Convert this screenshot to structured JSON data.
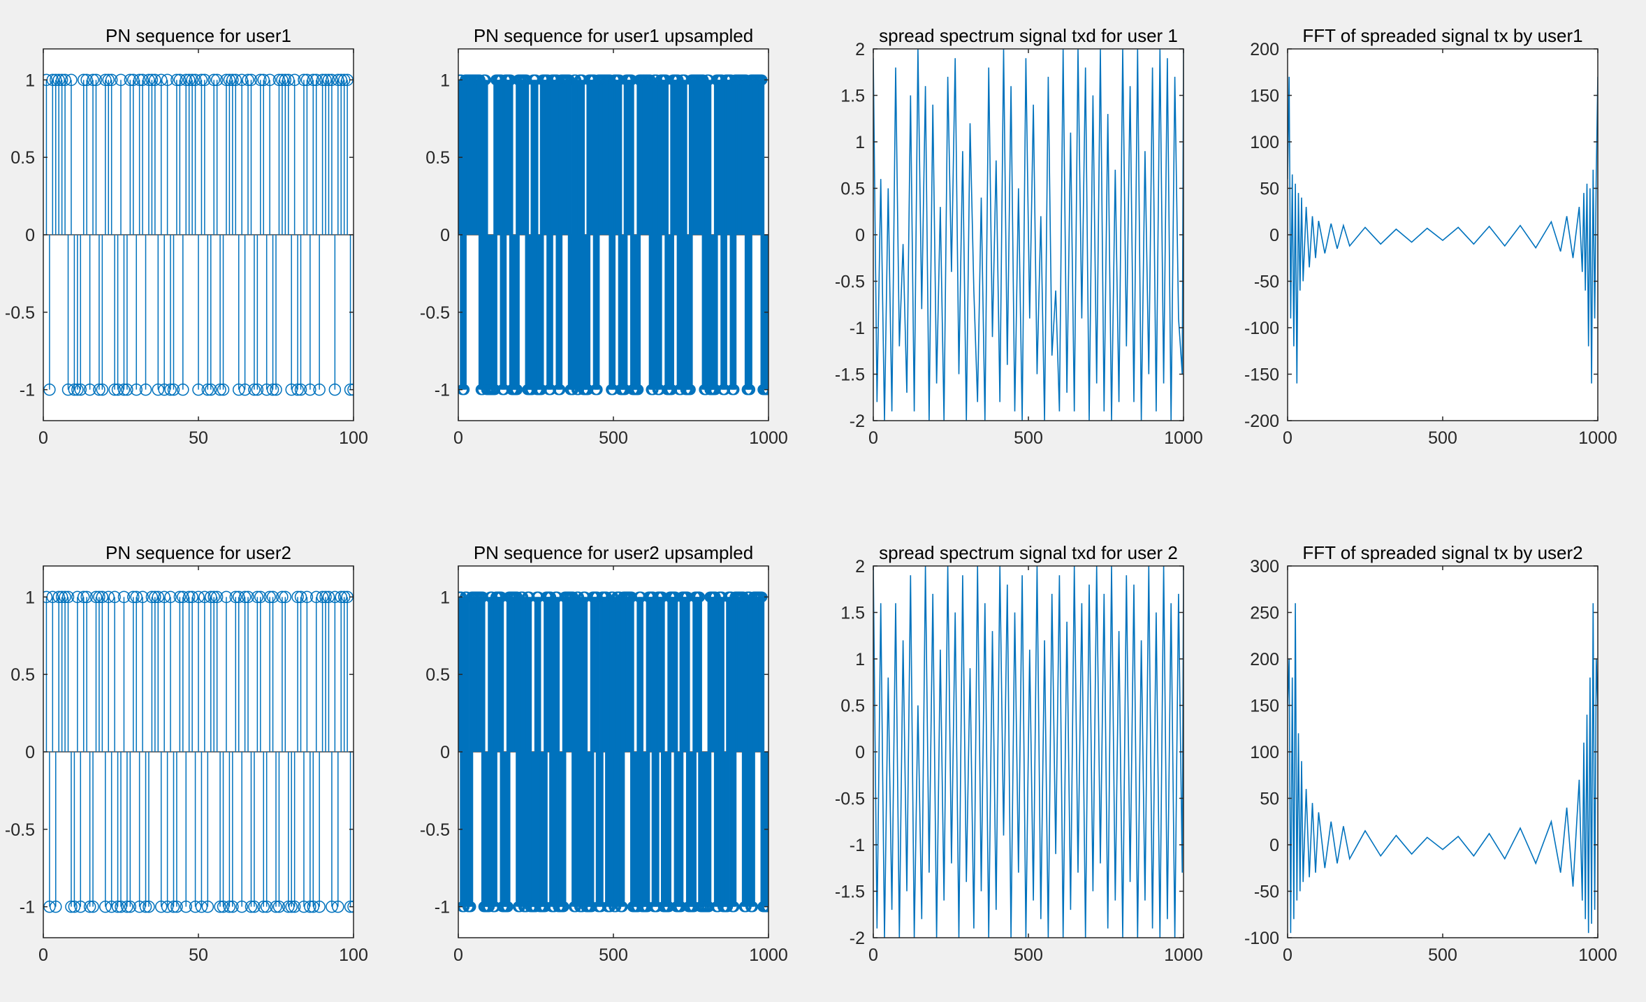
{
  "figure": {
    "background": "#f0f0f0",
    "line_color": "#0072bd"
  },
  "chart_data": [
    {
      "type": "stem",
      "title": "PN sequence for user1",
      "xlabel": "",
      "ylabel": "",
      "xlim": [
        0,
        100
      ],
      "ylim": [
        -1.2,
        1.2
      ],
      "xticks": [
        0,
        50,
        100
      ],
      "xtick_labels": [
        "0",
        "50",
        "100"
      ],
      "yticks": [
        -1,
        -0.5,
        0,
        0.5,
        1
      ],
      "ytick_labels": [
        "-1",
        "-0.5",
        "0",
        "0.5",
        "1"
      ],
      "x": [
        1,
        2,
        3,
        4,
        5,
        6,
        7,
        8,
        9,
        10,
        11,
        12,
        13,
        14,
        15,
        16,
        17,
        18,
        19,
        20,
        21,
        22,
        23,
        24,
        25,
        26,
        27,
        28,
        29,
        30,
        31,
        32,
        33,
        34,
        35,
        36,
        37,
        38,
        39,
        40,
        41,
        42,
        43,
        44,
        45,
        46,
        47,
        48,
        49,
        50,
        51,
        52,
        53,
        54,
        55,
        56,
        57,
        58,
        59,
        60,
        61,
        62,
        63,
        64,
        65,
        66,
        67,
        68,
        69,
        70,
        71,
        72,
        73,
        74,
        75,
        76,
        77,
        78,
        79,
        80,
        81,
        82,
        83,
        84,
        85,
        86,
        87,
        88,
        89,
        90,
        91,
        92,
        93,
        94,
        95,
        96,
        97,
        98,
        99,
        100
      ],
      "values": [
        1,
        -1,
        1,
        1,
        1,
        1,
        1,
        -1,
        1,
        -1,
        -1,
        -1,
        1,
        1,
        -1,
        1,
        1,
        -1,
        -1,
        1,
        1,
        1,
        -1,
        -1,
        1,
        -1,
        -1,
        1,
        1,
        -1,
        1,
        1,
        -1,
        1,
        1,
        1,
        -1,
        1,
        -1,
        1,
        -1,
        -1,
        1,
        1,
        -1,
        1,
        1,
        1,
        1,
        -1,
        1,
        1,
        -1,
        -1,
        1,
        1,
        -1,
        -1,
        1,
        1,
        1,
        1,
        -1,
        1,
        -1,
        1,
        1,
        -1,
        -1,
        1,
        1,
        -1,
        1,
        -1,
        -1,
        1,
        1,
        1,
        1,
        -1,
        1,
        -1,
        -1,
        1,
        1,
        -1,
        1,
        1,
        -1,
        1,
        1,
        1,
        1,
        -1,
        1,
        1,
        1,
        1,
        -1,
        -1
      ]
    },
    {
      "type": "stem",
      "title": "PN sequence for user1 upsampled",
      "xlabel": "",
      "ylabel": "",
      "xlim": [
        0,
        1000
      ],
      "ylim": [
        -1.2,
        1.2
      ],
      "xticks": [
        0,
        500,
        1000
      ],
      "xtick_labels": [
        "0",
        "500",
        "1000"
      ],
      "yticks": [
        -1,
        -0.5,
        0,
        0.5,
        1
      ],
      "ytick_labels": [
        "-1",
        "-0.5",
        "0",
        "0.5",
        "1"
      ],
      "source_sequence": "user1",
      "upsample_factor": 10
    },
    {
      "type": "line",
      "title": "spread spectrum signal txd for user 1",
      "xlabel": "",
      "ylabel": "",
      "xlim": [
        0,
        1000
      ],
      "ylim": [
        -2,
        2
      ],
      "xticks": [
        0,
        500,
        1000
      ],
      "xtick_labels": [
        "0",
        "500",
        "1000"
      ],
      "yticks": [
        -2,
        -1.5,
        -1,
        -0.5,
        0,
        0.5,
        1,
        1.5,
        2
      ],
      "ytick_labels": [
        "-2",
        "-1.5",
        "-1",
        "-0.5",
        "0",
        "0.5",
        "1",
        "1.5",
        "2"
      ],
      "x": [
        0,
        12,
        24,
        36,
        48,
        60,
        72,
        84,
        96,
        108,
        120,
        132,
        144,
        156,
        168,
        180,
        192,
        204,
        216,
        228,
        240,
        252,
        264,
        276,
        288,
        300,
        312,
        324,
        336,
        348,
        360,
        372,
        384,
        396,
        408,
        420,
        432,
        444,
        456,
        468,
        480,
        492,
        504,
        516,
        528,
        540,
        552,
        564,
        576,
        588,
        600,
        612,
        624,
        636,
        648,
        660,
        672,
        684,
        696,
        708,
        720,
        732,
        744,
        756,
        768,
        780,
        792,
        804,
        816,
        828,
        840,
        852,
        864,
        876,
        888,
        900,
        912,
        924,
        936,
        948,
        960,
        972,
        984,
        996,
        1000
      ],
      "values": [
        1.9,
        -1.8,
        0.6,
        -2,
        0.5,
        -1.9,
        1.8,
        -1.2,
        -0.1,
        -1.7,
        1.5,
        -1.9,
        2,
        -0.8,
        1.6,
        -2,
        1.4,
        -1.6,
        0.3,
        -2,
        1.7,
        -0.4,
        1.9,
        -1.5,
        0.9,
        -2,
        1.2,
        -0.6,
        -1.8,
        0.4,
        -2,
        1.8,
        -1.1,
        0.8,
        -1.8,
        2,
        -1.4,
        1.6,
        -1.9,
        0.5,
        -2,
        1.9,
        -0.9,
        1.4,
        -1.5,
        0.2,
        -2,
        1.7,
        -1.3,
        -0.6,
        -1.9,
        2,
        -1.7,
        1.1,
        -1.9,
        2,
        -0.9,
        1.8,
        -2,
        1.5,
        -1.6,
        2,
        -1.9,
        1.3,
        -2,
        0.7,
        -1.8,
        2,
        -1.2,
        1.6,
        -1.8,
        2,
        -2,
        0.9,
        -1.5,
        1.8,
        -1.9,
        2,
        -1.6,
        1.9,
        -2,
        1.7,
        -0.9,
        -1.5,
        2
      ]
    },
    {
      "type": "line",
      "title": "FFT of spreaded signal tx by user1",
      "xlabel": "",
      "ylabel": "",
      "xlim": [
        0,
        1000
      ],
      "ylim": [
        -200,
        200
      ],
      "xticks": [
        0,
        500,
        1000
      ],
      "xtick_labels": [
        "0",
        "500",
        "1000"
      ],
      "yticks": [
        -200,
        -150,
        -100,
        -50,
        0,
        50,
        100,
        150,
        200
      ],
      "ytick_labels": [
        "-200",
        "-150",
        "-100",
        "-50",
        "0",
        "50",
        "100",
        "150",
        "200"
      ],
      "x": [
        0,
        5,
        10,
        15,
        20,
        25,
        30,
        35,
        40,
        45,
        50,
        60,
        70,
        80,
        90,
        100,
        120,
        140,
        160,
        180,
        200,
        250,
        300,
        350,
        400,
        450,
        500,
        550,
        600,
        650,
        700,
        750,
        800,
        850,
        880,
        900,
        920,
        940,
        950,
        955,
        960,
        965,
        970,
        975,
        980,
        985,
        990,
        995,
        1000
      ],
      "values": [
        60,
        170,
        -90,
        65,
        -120,
        55,
        -160,
        45,
        -60,
        40,
        -50,
        30,
        -35,
        20,
        -25,
        15,
        -20,
        12,
        -15,
        10,
        -12,
        8,
        -10,
        6,
        -8,
        7,
        -6,
        8,
        -10,
        9,
        -12,
        10,
        -14,
        14,
        -18,
        20,
        -25,
        30,
        -40,
        45,
        -60,
        55,
        -120,
        50,
        -160,
        70,
        -90,
        65,
        170
      ]
    },
    {
      "type": "stem",
      "title": "PN sequence for user2",
      "xlabel": "",
      "ylabel": "",
      "xlim": [
        0,
        100
      ],
      "ylim": [
        -1.2,
        1.2
      ],
      "xticks": [
        0,
        50,
        100
      ],
      "xtick_labels": [
        "0",
        "50",
        "100"
      ],
      "yticks": [
        -1,
        -0.5,
        0,
        0.5,
        1
      ],
      "ytick_labels": [
        "-1",
        "-0.5",
        "0",
        "0.5",
        "1"
      ],
      "x": [
        1,
        2,
        3,
        4,
        5,
        6,
        7,
        8,
        9,
        10,
        11,
        12,
        13,
        14,
        15,
        16,
        17,
        18,
        19,
        20,
        21,
        22,
        23,
        24,
        25,
        26,
        27,
        28,
        29,
        30,
        31,
        32,
        33,
        34,
        35,
        36,
        37,
        38,
        39,
        40,
        41,
        42,
        43,
        44,
        45,
        46,
        47,
        48,
        49,
        50,
        51,
        52,
        53,
        54,
        55,
        56,
        57,
        58,
        59,
        60,
        61,
        62,
        63,
        64,
        65,
        66,
        67,
        68,
        69,
        70,
        71,
        72,
        73,
        74,
        75,
        76,
        77,
        78,
        79,
        80,
        81,
        82,
        83,
        84,
        85,
        86,
        87,
        88,
        89,
        90,
        91,
        92,
        93,
        94,
        95,
        96,
        97,
        98,
        99,
        100
      ],
      "values": [
        1,
        -1,
        1,
        -1,
        1,
        1,
        1,
        1,
        -1,
        -1,
        1,
        -1,
        1,
        1,
        -1,
        -1,
        1,
        1,
        1,
        -1,
        1,
        -1,
        1,
        -1,
        -1,
        1,
        -1,
        -1,
        1,
        1,
        -1,
        1,
        -1,
        -1,
        1,
        1,
        1,
        -1,
        1,
        -1,
        1,
        -1,
        -1,
        1,
        1,
        -1,
        1,
        1,
        -1,
        1,
        -1,
        1,
        -1,
        1,
        1,
        1,
        -1,
        -1,
        1,
        -1,
        -1,
        1,
        1,
        -1,
        1,
        1,
        -1,
        -1,
        1,
        1,
        -1,
        -1,
        1,
        1,
        -1,
        -1,
        1,
        1,
        -1,
        -1,
        -1,
        1,
        1,
        -1,
        1,
        -1,
        -1,
        1,
        -1,
        1,
        1,
        1,
        -1,
        1,
        -1,
        1,
        1,
        1,
        -1,
        -1
      ]
    },
    {
      "type": "stem",
      "title": "PN sequence for user2 upsampled",
      "xlabel": "",
      "ylabel": "",
      "xlim": [
        0,
        1000
      ],
      "ylim": [
        -1.2,
        1.2
      ],
      "xticks": [
        0,
        500,
        1000
      ],
      "xtick_labels": [
        "0",
        "500",
        "1000"
      ],
      "yticks": [
        -1,
        -0.5,
        0,
        0.5,
        1
      ],
      "ytick_labels": [
        "-1",
        "-0.5",
        "0",
        "0.5",
        "1"
      ],
      "source_sequence": "user2",
      "upsample_factor": 10
    },
    {
      "type": "line",
      "title": "spread spectrum signal txd for user 2",
      "xlabel": "",
      "ylabel": "",
      "xlim": [
        0,
        1000
      ],
      "ylim": [
        -2,
        2
      ],
      "xticks": [
        0,
        500,
        1000
      ],
      "xtick_labels": [
        "0",
        "500",
        "1000"
      ],
      "yticks": [
        -2,
        -1.5,
        -1,
        -0.5,
        0,
        0.5,
        1,
        1.5,
        2
      ],
      "ytick_labels": [
        "-2",
        "-1.5",
        "-1",
        "-0.5",
        "0",
        "0.5",
        "1",
        "1.5",
        "2"
      ],
      "x": [
        0,
        12,
        24,
        36,
        48,
        60,
        72,
        84,
        96,
        108,
        120,
        132,
        144,
        156,
        168,
        180,
        192,
        204,
        216,
        228,
        240,
        252,
        264,
        276,
        288,
        300,
        312,
        324,
        336,
        348,
        360,
        372,
        384,
        396,
        408,
        420,
        432,
        444,
        456,
        468,
        480,
        492,
        504,
        516,
        528,
        540,
        552,
        564,
        576,
        588,
        600,
        612,
        624,
        636,
        648,
        660,
        672,
        684,
        696,
        708,
        720,
        732,
        744,
        756,
        768,
        780,
        792,
        804,
        816,
        828,
        840,
        852,
        864,
        876,
        888,
        900,
        912,
        924,
        936,
        948,
        960,
        972,
        984,
        996,
        1000
      ],
      "values": [
        2,
        -1.9,
        1.6,
        -2,
        0.8,
        -1.7,
        1.6,
        -2,
        1.2,
        -1.5,
        1.9,
        -2,
        0.5,
        -1.8,
        2,
        -1.3,
        1.7,
        -2,
        1.1,
        -1.6,
        2,
        -1.2,
        1.5,
        -2,
        1.9,
        -1.4,
        0.9,
        -1.9,
        2,
        -1.5,
        1.6,
        -2,
        1.3,
        -1.7,
        2,
        -0.9,
        1.8,
        -2,
        1.5,
        -1.3,
        1.9,
        -2,
        1.1,
        -1.6,
        2,
        -1.8,
        1.2,
        -2,
        1.7,
        -1.1,
        1.9,
        -2,
        1.4,
        -1.7,
        2,
        -1.3,
        1.6,
        -2,
        1.8,
        -1.5,
        2,
        -1.2,
        1.7,
        -1.9,
        2,
        -1.6,
        1.3,
        -2,
        1.9,
        -1.4,
        1.8,
        -2,
        1.2,
        -1.6,
        2,
        -1.9,
        1.5,
        -2,
        2,
        -1.8,
        1.6,
        -2,
        1.7,
        -1.3,
        2
      ]
    },
    {
      "type": "line",
      "title": "FFT of spreaded signal tx by user2",
      "xlabel": "",
      "ylabel": "",
      "xlim": [
        0,
        1000
      ],
      "ylim": [
        -100,
        300
      ],
      "xticks": [
        0,
        500,
        1000
      ],
      "xtick_labels": [
        "0",
        "500",
        "1000"
      ],
      "yticks": [
        -100,
        -50,
        0,
        50,
        100,
        150,
        200,
        250,
        300
      ],
      "ytick_labels": [
        "-100",
        "-50",
        "0",
        "50",
        "100",
        "150",
        "200",
        "250",
        "300"
      ],
      "x": [
        0,
        5,
        10,
        15,
        20,
        25,
        30,
        35,
        40,
        45,
        50,
        60,
        70,
        80,
        90,
        100,
        120,
        140,
        160,
        180,
        200,
        250,
        300,
        350,
        400,
        450,
        500,
        550,
        600,
        650,
        700,
        750,
        800,
        850,
        880,
        900,
        920,
        940,
        950,
        955,
        960,
        965,
        970,
        975,
        980,
        985,
        990,
        995,
        1000
      ],
      "values": [
        150,
        200,
        -95,
        180,
        -80,
        260,
        -60,
        120,
        -50,
        90,
        -40,
        60,
        -35,
        45,
        -30,
        35,
        -25,
        25,
        -20,
        20,
        -15,
        15,
        -12,
        10,
        -10,
        8,
        -5,
        9,
        -12,
        12,
        -15,
        18,
        -20,
        25,
        -30,
        40,
        -45,
        70,
        -60,
        110,
        -80,
        140,
        -95,
        180,
        -85,
        260,
        -70,
        200,
        150
      ]
    }
  ]
}
